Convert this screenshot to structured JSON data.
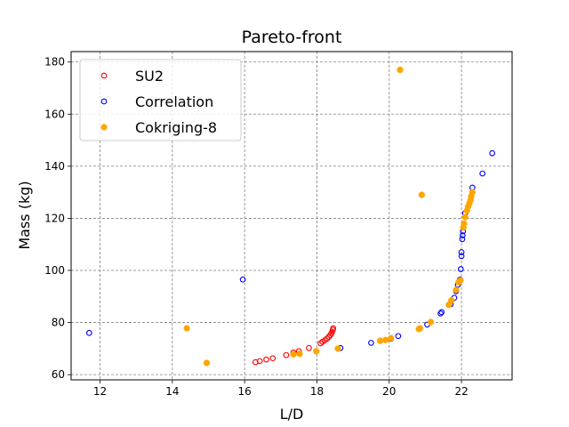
{
  "chart_data": {
    "type": "scatter",
    "title": "Pareto-front",
    "xlabel": "L/D",
    "ylabel": "Mass (kg)",
    "xlim": [
      11.2,
      23.4
    ],
    "ylim": [
      58,
      184
    ],
    "xticks": [
      12,
      14,
      16,
      18,
      20,
      22
    ],
    "yticks": [
      60,
      80,
      100,
      120,
      140,
      160,
      180
    ],
    "grid": true,
    "legend_position": "top-left",
    "series": [
      {
        "name": "SU2",
        "marker": "hollow-circle",
        "color": "#ff0000",
        "points": [
          [
            16.3,
            64.8
          ],
          [
            16.42,
            65.2
          ],
          [
            16.6,
            65.8
          ],
          [
            16.78,
            66.3
          ],
          [
            17.15,
            67.5
          ],
          [
            17.35,
            68.5
          ],
          [
            17.5,
            69.0
          ],
          [
            17.78,
            70.2
          ],
          [
            18.1,
            72.0
          ],
          [
            18.15,
            72.6
          ],
          [
            18.22,
            73.2
          ],
          [
            18.28,
            73.8
          ],
          [
            18.33,
            74.5
          ],
          [
            18.37,
            75.2
          ],
          [
            18.4,
            75.8
          ],
          [
            18.42,
            76.5
          ],
          [
            18.44,
            77.2
          ],
          [
            18.45,
            77.8
          ]
        ]
      },
      {
        "name": "Correlation",
        "marker": "hollow-circle",
        "color": "#0000ff",
        "points": [
          [
            11.7,
            76.0
          ],
          [
            15.95,
            96.5
          ],
          [
            18.65,
            70.2
          ],
          [
            19.5,
            72.2
          ],
          [
            20.05,
            73.8
          ],
          [
            20.25,
            74.8
          ],
          [
            21.05,
            79.2
          ],
          [
            21.42,
            83.5
          ],
          [
            21.45,
            84.0
          ],
          [
            21.7,
            87.0
          ],
          [
            21.8,
            89.5
          ],
          [
            21.85,
            92.0
          ],
          [
            21.9,
            94.5
          ],
          [
            21.93,
            95.5
          ],
          [
            21.96,
            96.5
          ],
          [
            21.98,
            100.5
          ],
          [
            22.0,
            105.5
          ],
          [
            22.0,
            107.0
          ],
          [
            22.02,
            112.0
          ],
          [
            22.03,
            113.5
          ],
          [
            22.04,
            115.0
          ],
          [
            22.1,
            122.0
          ],
          [
            22.3,
            131.8
          ],
          [
            22.58,
            137.2
          ],
          [
            22.85,
            145.0
          ]
        ]
      },
      {
        "name": "Cokriging-8",
        "marker": "filled-circle",
        "color": "#ffa500",
        "points": [
          [
            14.4,
            77.8
          ],
          [
            14.95,
            64.5
          ],
          [
            17.35,
            67.8
          ],
          [
            17.52,
            68.0
          ],
          [
            17.98,
            69.0
          ],
          [
            18.58,
            70.0
          ],
          [
            19.75,
            73.0
          ],
          [
            19.9,
            73.3
          ],
          [
            20.05,
            74.0
          ],
          [
            20.3,
            177.0
          ],
          [
            20.82,
            77.5
          ],
          [
            20.85,
            77.8
          ],
          [
            20.9,
            129.0
          ],
          [
            21.15,
            80.2
          ],
          [
            21.65,
            86.8
          ],
          [
            21.72,
            88.5
          ],
          [
            21.85,
            92.5
          ],
          [
            21.92,
            95.5
          ],
          [
            21.97,
            96.2
          ],
          [
            22.05,
            116.5
          ],
          [
            22.07,
            118.0
          ],
          [
            22.1,
            120.5
          ],
          [
            22.15,
            123.0
          ],
          [
            22.18,
            124.5
          ],
          [
            22.22,
            125.8
          ],
          [
            22.25,
            127.0
          ],
          [
            22.27,
            128.5
          ],
          [
            22.3,
            130.0
          ]
        ]
      }
    ]
  }
}
